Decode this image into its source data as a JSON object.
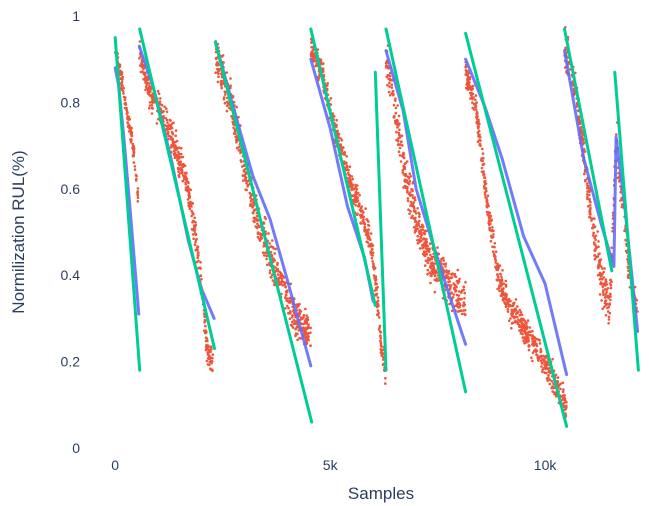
{
  "chart_data": {
    "type": "scatter",
    "title": "",
    "xlabel": "Samples",
    "ylabel": "Normilization RUL(%)",
    "xlim": [
      -400,
      12300
    ],
    "ylim": [
      0,
      1
    ],
    "x_ticks": [
      {
        "value": 0,
        "label": "0"
      },
      {
        "value": 5000,
        "label": "5k"
      },
      {
        "value": 10000,
        "label": "10k"
      }
    ],
    "y_ticks": [
      {
        "value": 0,
        "label": "0"
      },
      {
        "value": 0.2,
        "label": "0.2"
      },
      {
        "value": 0.4,
        "label": "0.4"
      },
      {
        "value": 0.6,
        "label": "0.6"
      },
      {
        "value": 0.8,
        "label": "0.8"
      },
      {
        "value": 1,
        "label": "1"
      }
    ],
    "grid": false,
    "legend": "none",
    "colors": {
      "actual_points": "#ef553b",
      "predicted_line": "#636efa",
      "fit_line": "#00cc96",
      "text": "#2a3f5f"
    },
    "series": [
      {
        "style": "markers",
        "color": "#ef553b",
        "segments": [
          {
            "x0": 0,
            "x1": 540,
            "y_path": [
              [
                0,
                0.93
              ],
              [
                80,
                0.88
              ],
              [
                180,
                0.84
              ],
              [
                280,
                0.77
              ],
              [
                380,
                0.72
              ],
              [
                450,
                0.67
              ],
              [
                540,
                0.57
              ]
            ],
            "spread": 0.03
          },
          {
            "x0": 560,
            "x1": 2280,
            "y_path": [
              [
                560,
                0.92
              ],
              [
                800,
                0.82
              ],
              [
                1100,
                0.77
              ],
              [
                1400,
                0.7
              ],
              [
                1700,
                0.6
              ],
              [
                1900,
                0.47
              ],
              [
                2050,
                0.33
              ],
              [
                2150,
                0.22
              ],
              [
                2280,
                0.19
              ]
            ],
            "spread": 0.05
          },
          {
            "x0": 2330,
            "x1": 4550,
            "y_path": [
              [
                2330,
                0.91
              ],
              [
                2700,
                0.8
              ],
              [
                3000,
                0.65
              ],
              [
                3300,
                0.53
              ],
              [
                3600,
                0.44
              ],
              [
                3900,
                0.37
              ],
              [
                4200,
                0.3
              ],
              [
                4550,
                0.26
              ]
            ],
            "spread": 0.07
          },
          {
            "x0": 4550,
            "x1": 6300,
            "y_path": [
              [
                4550,
                0.93
              ],
              [
                4800,
                0.87
              ],
              [
                5100,
                0.74
              ],
              [
                5400,
                0.63
              ],
              [
                5700,
                0.55
              ],
              [
                5950,
                0.48
              ],
              [
                6050,
                0.4
              ],
              [
                6200,
                0.22
              ],
              [
                6300,
                0.17
              ]
            ],
            "spread": 0.05
          },
          {
            "x0": 6300,
            "x1": 8150,
            "y_path": [
              [
                6300,
                0.9
              ],
              [
                6500,
                0.79
              ],
              [
                6750,
                0.63
              ],
              [
                7000,
                0.53
              ],
              [
                7300,
                0.44
              ],
              [
                7600,
                0.4
              ],
              [
                7900,
                0.36
              ],
              [
                8150,
                0.34
              ]
            ],
            "spread": 0.07
          },
          {
            "x0": 8150,
            "x1": 10500,
            "y_path": [
              [
                8150,
                0.87
              ],
              [
                8400,
                0.78
              ],
              [
                8650,
                0.57
              ],
              [
                8900,
                0.4
              ],
              [
                9200,
                0.32
              ],
              [
                9600,
                0.26
              ],
              [
                10000,
                0.2
              ],
              [
                10300,
                0.14
              ],
              [
                10500,
                0.09
              ]
            ],
            "spread": 0.05
          },
          {
            "x0": 10450,
            "x1": 12150,
            "y_path": [
              [
                10450,
                0.92
              ],
              [
                10700,
                0.83
              ],
              [
                10900,
                0.68
              ],
              [
                11100,
                0.52
              ],
              [
                11300,
                0.4
              ],
              [
                11500,
                0.31
              ],
              [
                11650,
                0.72
              ],
              [
                11850,
                0.52
              ],
              [
                12000,
                0.38
              ],
              [
                12150,
                0.3
              ]
            ],
            "spread": 0.07
          }
        ]
      },
      {
        "style": "lines",
        "color": "#636efa",
        "segments": [
          [
            [
              0,
              0.88
            ],
            [
              80,
              0.84
            ],
            [
              200,
              0.72
            ],
            [
              350,
              0.55
            ],
            [
              450,
              0.43
            ],
            [
              550,
              0.31
            ]
          ],
          [
            [
              560,
              0.93
            ],
            [
              900,
              0.83
            ],
            [
              1300,
              0.67
            ],
            [
              1700,
              0.48
            ],
            [
              2000,
              0.37
            ],
            [
              2300,
              0.3
            ]
          ],
          [
            [
              2330,
              0.94
            ],
            [
              2800,
              0.77
            ],
            [
              3200,
              0.63
            ],
            [
              3600,
              0.53
            ],
            [
              4000,
              0.39
            ],
            [
              4550,
              0.19
            ]
          ],
          [
            [
              4550,
              0.9
            ],
            [
              5000,
              0.74
            ],
            [
              5400,
              0.56
            ],
            [
              5800,
              0.44
            ],
            [
              6000,
              0.34
            ]
          ],
          [
            [
              6300,
              0.92
            ],
            [
              6700,
              0.78
            ],
            [
              7000,
              0.6
            ],
            [
              7400,
              0.47
            ],
            [
              7750,
              0.36
            ],
            [
              8150,
              0.24
            ]
          ],
          [
            [
              8150,
              0.9
            ],
            [
              8600,
              0.79
            ],
            [
              9000,
              0.67
            ],
            [
              9500,
              0.49
            ],
            [
              10000,
              0.38
            ],
            [
              10500,
              0.17
            ]
          ],
          [
            [
              10450,
              0.92
            ],
            [
              10900,
              0.67
            ],
            [
              11300,
              0.52
            ],
            [
              11600,
              0.42
            ],
            [
              11650,
              0.72
            ],
            [
              11850,
              0.56
            ],
            [
              12150,
              0.27
            ]
          ]
        ]
      },
      {
        "style": "lines",
        "color": "#00cc96",
        "segments": [
          [
            [
              0,
              0.95
            ],
            [
              570,
              0.18
            ]
          ],
          [
            [
              570,
              0.97
            ],
            [
              2310,
              0.23
            ]
          ],
          [
            [
              2330,
              0.94
            ],
            [
              4570,
              0.06
            ]
          ],
          [
            [
              4550,
              0.97
            ],
            [
              6050,
              0.33
            ]
          ],
          [
            [
              6050,
              0.87
            ],
            [
              6300,
              0.18
            ]
          ],
          [
            [
              6300,
              0.97
            ],
            [
              8150,
              0.13
            ]
          ],
          [
            [
              8150,
              0.96
            ],
            [
              10500,
              0.05
            ]
          ],
          [
            [
              10450,
              0.97
            ],
            [
              11550,
              0.41
            ]
          ],
          [
            [
              11620,
              0.87
            ],
            [
              12170,
              0.18
            ]
          ]
        ]
      }
    ]
  }
}
